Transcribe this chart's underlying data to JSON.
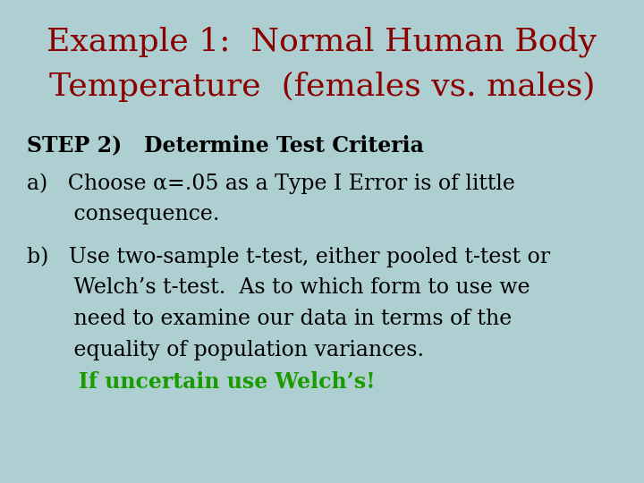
{
  "background_color": "#aecfd1",
  "title_line1": "Example 1:  Normal Human Body",
  "title_line2": "Temperature  (females vs. males)",
  "title_color": "#8b0000",
  "title_fontsize": 26,
  "step_text": "STEP 2)   Determine Test Criteria",
  "step_color": "#000000",
  "step_fontsize": 17,
  "item_a_line1": "a)   Choose α=.05 as a Type I Error is of little",
  "item_a_line2": "       consequence.",
  "item_b_line1": "b)   Use two-sample t-test, either pooled t-test or",
  "item_b_line2": "       Welch’s t-test.  As to which form to use we",
  "item_b_line3": "       need to examine our data in terms of the",
  "item_b_line4": "       equality of population variances.",
  "item_b_line5": "       If uncertain use Welch’s!",
  "body_color": "#000000",
  "highlight_color": "#1a9c00",
  "body_fontsize": 17
}
